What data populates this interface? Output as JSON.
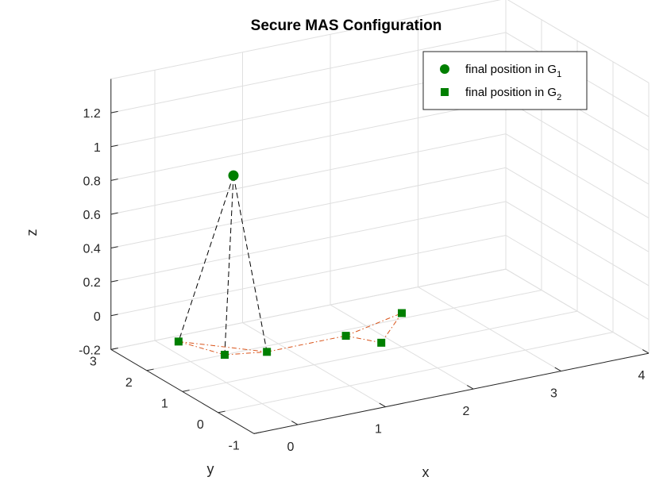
{
  "chart_data": {
    "type": "scatter",
    "title": "Secure MAS Configuration",
    "xlabel": "x",
    "ylabel": "y",
    "zlabel": "z",
    "xlim": [
      -0.5,
      4
    ],
    "ylim": [
      -1,
      3
    ],
    "zlim": [
      -0.2,
      1.4
    ],
    "xticks": [
      "0",
      "1",
      "2",
      "3",
      "4"
    ],
    "yticks": [
      "-1",
      "0",
      "1",
      "2",
      "3"
    ],
    "zticks": [
      "-0.2",
      "0",
      "0.2",
      "0.4",
      "0.6",
      "0.8",
      "1",
      "1.2"
    ],
    "grid": true,
    "legend_position": "top-right",
    "series": [
      {
        "name": "final position in G",
        "subscript": "1",
        "marker": "circle",
        "color": "#007f00",
        "points": [
          [
            0.0,
            0.8,
            1.05
          ]
        ]
      },
      {
        "name": "final position in G",
        "subscript": "2",
        "marker": "square",
        "color": "#007f00",
        "points": [
          [
            -0.3,
            1.6,
            0.0
          ],
          [
            -0.1,
            0.8,
            0.0
          ],
          [
            0.3,
            0.6,
            0.0
          ],
          [
            1.2,
            0.6,
            0.0
          ],
          [
            1.4,
            0.1,
            0.0
          ],
          [
            2.0,
            1.0,
            0.0
          ]
        ]
      }
    ],
    "edges_g1_to_g2": {
      "color": "#000000",
      "style": "dashed",
      "pairs": [
        [
          0,
          0
        ],
        [
          0,
          1
        ],
        [
          0,
          2
        ]
      ]
    },
    "edges_g2": {
      "color": "#d95319",
      "style": "dash-dot",
      "pairs": [
        [
          0,
          1
        ],
        [
          1,
          2
        ],
        [
          0,
          2
        ],
        [
          2,
          3
        ],
        [
          3,
          4
        ],
        [
          4,
          5
        ],
        [
          3,
          5
        ]
      ]
    }
  }
}
